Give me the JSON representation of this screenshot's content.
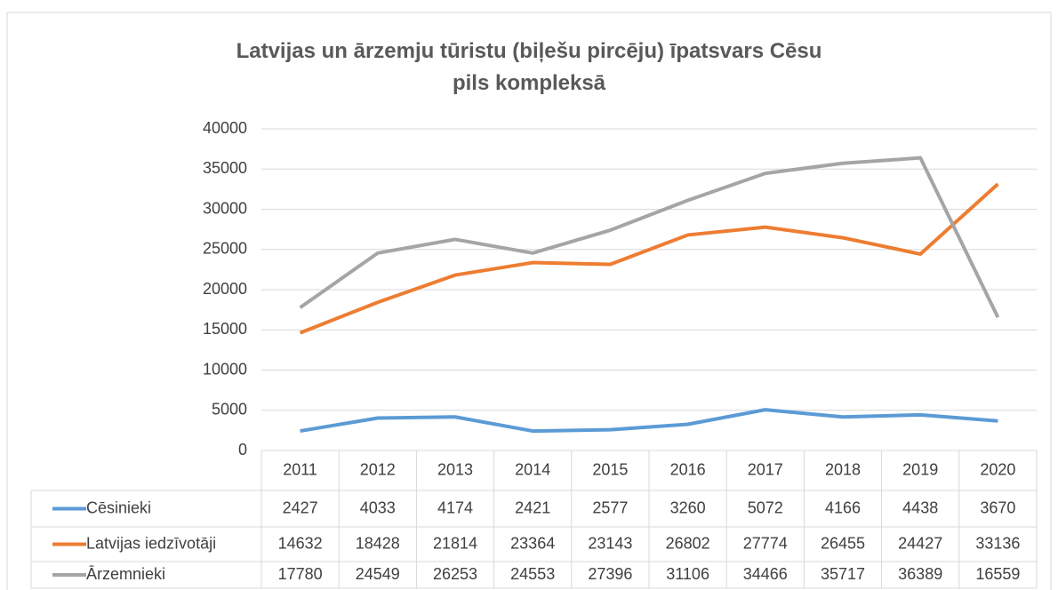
{
  "chart_data": {
    "type": "line",
    "title": "Latvijas un ārzemju tūristu (biļešu pircēju) īpatsvars Cēsu pils kompleksā",
    "categories": [
      "2011",
      "2012",
      "2013",
      "2014",
      "2015",
      "2016",
      "2017",
      "2018",
      "2019",
      "2020"
    ],
    "series": [
      {
        "name": "Cēsinieki",
        "color": "#5b9bd5",
        "values": [
          2427,
          4033,
          4174,
          2421,
          2577,
          3260,
          5072,
          4166,
          4438,
          3670
        ]
      },
      {
        "name": "Latvijas iedzīvotāji",
        "color": "#ed7d31",
        "values": [
          14632,
          18428,
          21814,
          23364,
          23143,
          26802,
          27774,
          26455,
          24427,
          33136
        ]
      },
      {
        "name": "Ārzemnieki",
        "color": "#a5a5a5",
        "values": [
          17780,
          24549,
          26253,
          24553,
          27396,
          31106,
          34466,
          35717,
          36389,
          16559
        ]
      }
    ],
    "ylim": [
      0,
      40000
    ],
    "yticks": [
      0,
      5000,
      10000,
      15000,
      20000,
      25000,
      30000,
      35000,
      40000
    ],
    "grid": true
  }
}
